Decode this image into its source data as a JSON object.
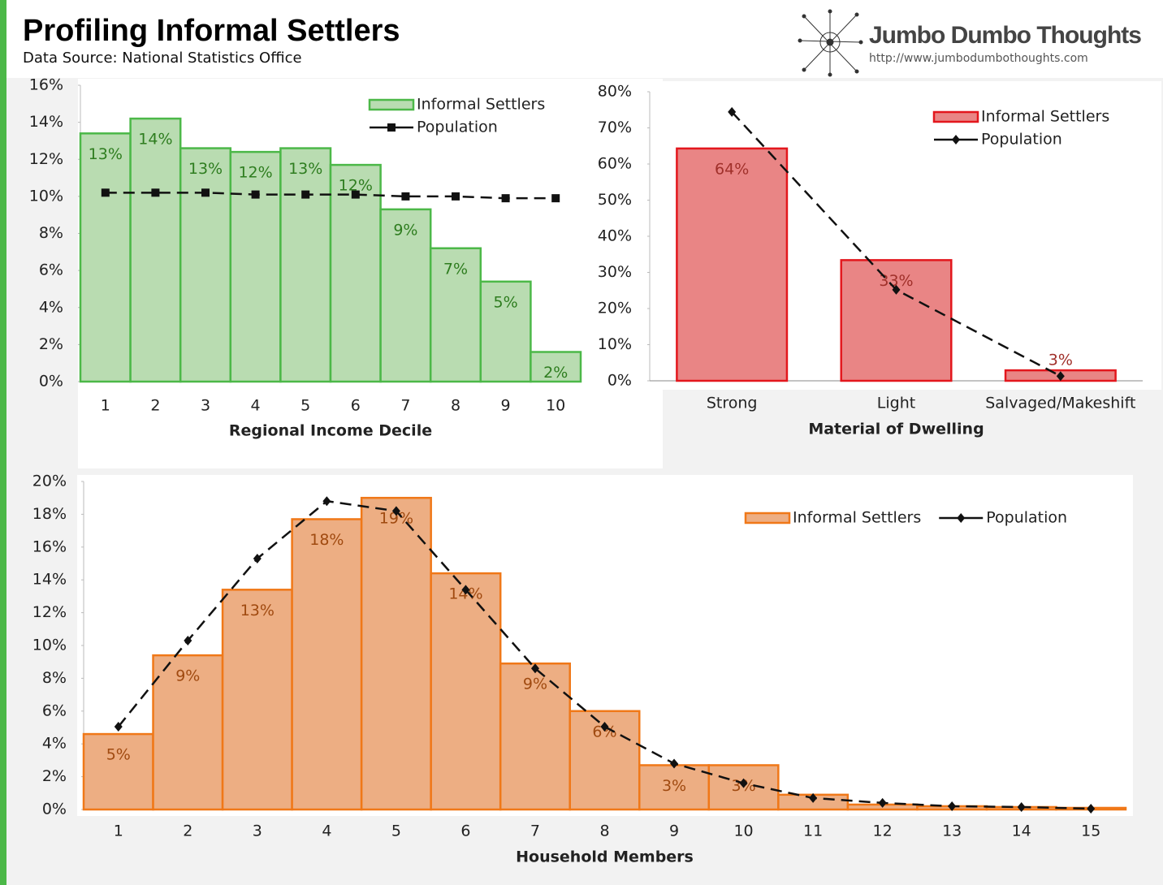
{
  "title": "Profiling Informal Settlers",
  "subtitle": "Data Source: National Statistics Office",
  "brand": "Jumbo Dumbo Thoughts",
  "url": "http://www.jumbodumbothoughts.com",
  "chart_data": [
    {
      "type": "bar",
      "x_label": "Regional Income Decile",
      "categories": [
        "1",
        "2",
        "3",
        "4",
        "5",
        "6",
        "7",
        "8",
        "9",
        "10"
      ],
      "series": [
        {
          "name": "Informal Settlers",
          "color": "#b9dcb1",
          "stroke": "#4cb848",
          "label_color": "#2e7d1f",
          "values": [
            13.4,
            14.2,
            12.6,
            12.4,
            12.6,
            11.7,
            9.3,
            7.2,
            5.4,
            1.6
          ],
          "value_labels": [
            "13%",
            "14%",
            "13%",
            "12%",
            "13%",
            "12%",
            "9%",
            "7%",
            "5%",
            "2%"
          ]
        },
        {
          "name": "Population",
          "type": "line",
          "color": "#111111",
          "marker": "square",
          "values": [
            10.2,
            10.2,
            10.2,
            10.1,
            10.1,
            10.1,
            10.0,
            10.0,
            9.9,
            9.9
          ]
        }
      ],
      "ylim": [
        0,
        16
      ],
      "yticks": [
        {
          "value": 0,
          "label": "0%"
        },
        {
          "value": 2,
          "label": "2%"
        },
        {
          "value": 4,
          "label": "4%"
        },
        {
          "value": 6,
          "label": "6%"
        },
        {
          "value": 8,
          "label": "8%"
        },
        {
          "value": 10,
          "label": "10%"
        },
        {
          "value": 12,
          "label": "12%"
        },
        {
          "value": 14,
          "label": "14%"
        },
        {
          "value": 16,
          "label": "16%"
        }
      ],
      "legend": "top-right"
    },
    {
      "type": "bar",
      "x_label": "Material of Dwelling",
      "categories": [
        "Strong",
        "Light",
        "Salvaged/Makeshift"
      ],
      "series": [
        {
          "name": "Informal Settlers",
          "color": "#e98585",
          "stroke": "#e3171d",
          "label_color": "#a0302a",
          "values": [
            64.3,
            33.4,
            2.9
          ],
          "value_labels": [
            "64%",
            "33%",
            "3%"
          ]
        },
        {
          "name": "Population",
          "type": "line",
          "color": "#111111",
          "marker": "diamond",
          "values": [
            74.4,
            25.2,
            1.3
          ]
        }
      ],
      "ylim": [
        0,
        80
      ],
      "yticks": [
        {
          "value": 0,
          "label": "0%"
        },
        {
          "value": 10,
          "label": "10%"
        },
        {
          "value": 20,
          "label": "20%"
        },
        {
          "value": 30,
          "label": "30%"
        },
        {
          "value": 40,
          "label": "40%"
        },
        {
          "value": 50,
          "label": "50%"
        },
        {
          "value": 60,
          "label": "60%"
        },
        {
          "value": 70,
          "label": "70%"
        },
        {
          "value": 80,
          "label": "80%"
        }
      ],
      "legend": "top-right"
    },
    {
      "type": "bar",
      "x_label": "Household Members",
      "categories": [
        "1",
        "2",
        "3",
        "4",
        "5",
        "6",
        "7",
        "8",
        "9",
        "10",
        "11",
        "12",
        "13",
        "14",
        "15"
      ],
      "series": [
        {
          "name": "Informal Settlers",
          "color": "#edae83",
          "stroke": "#f07818",
          "label_color": "#a04a10",
          "values": [
            4.6,
            9.4,
            13.4,
            17.7,
            19.0,
            14.4,
            8.9,
            6.0,
            2.7,
            2.7,
            0.9,
            0.3,
            0.2,
            0.15,
            0.1
          ],
          "value_labels": [
            "5%",
            "9%",
            "13%",
            "18%",
            "19%",
            "14%",
            "9%",
            "6%",
            "3%",
            "3%",
            null,
            null,
            null,
            null,
            null
          ]
        },
        {
          "name": "Population",
          "type": "line",
          "color": "#111111",
          "marker": "diamond",
          "values": [
            5.05,
            10.3,
            15.3,
            18.8,
            18.2,
            13.4,
            8.6,
            5.05,
            2.8,
            1.6,
            0.7,
            0.4,
            0.2,
            0.15,
            0.05
          ]
        }
      ],
      "ylim": [
        0,
        20
      ],
      "yticks": [
        {
          "value": 0,
          "label": "0%"
        },
        {
          "value": 2,
          "label": "2%"
        },
        {
          "value": 4,
          "label": "4%"
        },
        {
          "value": 6,
          "label": "6%"
        },
        {
          "value": 8,
          "label": "8%"
        },
        {
          "value": 10,
          "label": "10%"
        },
        {
          "value": 12,
          "label": "12%"
        },
        {
          "value": 14,
          "label": "14%"
        },
        {
          "value": 16,
          "label": "16%"
        },
        {
          "value": 18,
          "label": "18%"
        },
        {
          "value": 20,
          "label": "20%"
        }
      ],
      "legend": "top-right"
    }
  ]
}
